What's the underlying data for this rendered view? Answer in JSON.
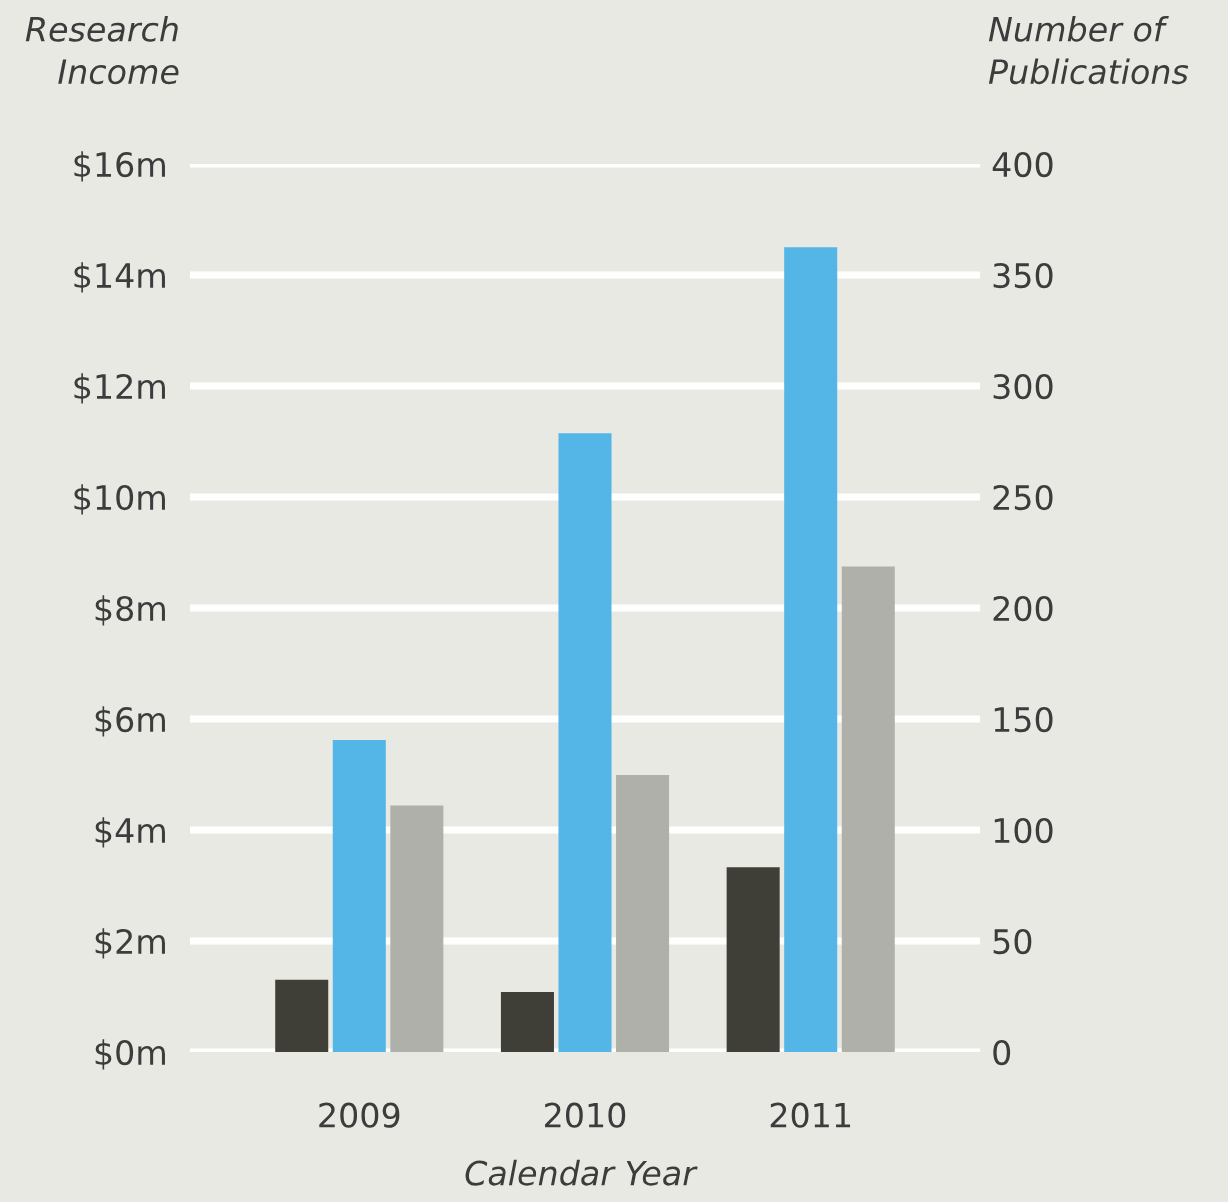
{
  "chart_data": {
    "type": "bar",
    "ylabel": "Research\nIncome",
    "y2label": "Number of\nPublications",
    "xlabel": "Calendar Year",
    "categories": [
      "2009",
      "2010",
      "2011"
    ],
    "series": [
      {
        "color": "#403f37",
        "values": [
          1.3,
          1.08,
          3.33
        ]
      },
      {
        "color": "#54b6e6",
        "values": [
          5.62,
          11.15,
          14.5
        ]
      },
      {
        "color": "#b0b0ab",
        "values": [
          4.44,
          4.99,
          8.75
        ]
      }
    ],
    "ylim": [
      0,
      16
    ],
    "yticks": [
      {
        "value": 0,
        "label": "$0m"
      },
      {
        "value": 2,
        "label": "$2m"
      },
      {
        "value": 4,
        "label": "$4m"
      },
      {
        "value": 6,
        "label": "$6m"
      },
      {
        "value": 8,
        "label": "$8m"
      },
      {
        "value": 10,
        "label": "$10m"
      },
      {
        "value": 12,
        "label": "$12m"
      },
      {
        "value": 14,
        "label": "$14m"
      },
      {
        "value": 16,
        "label": "$16m"
      }
    ],
    "y2lim": [
      0,
      400
    ],
    "y2ticks": [
      0,
      50,
      100,
      150,
      200,
      250,
      300,
      350,
      400
    ],
    "grid": "y"
  }
}
